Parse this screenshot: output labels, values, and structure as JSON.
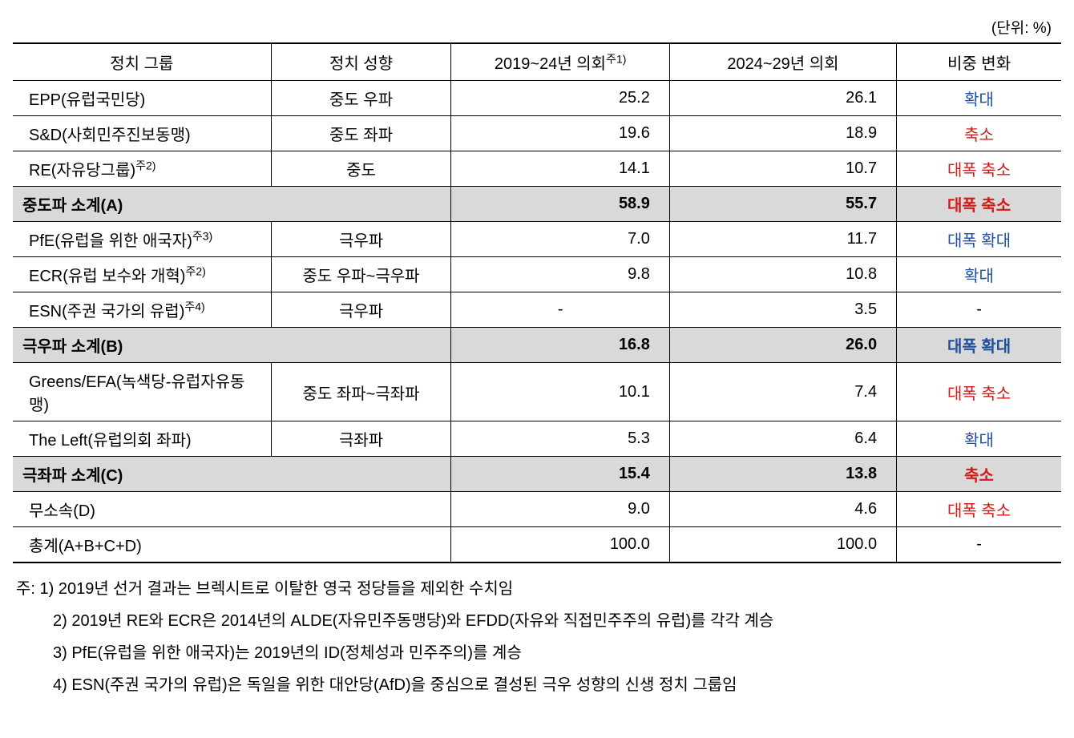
{
  "unit_label": "(단위: %)",
  "columns": {
    "group": "정치 그룹",
    "orient": "정치 성향",
    "c2019": "2019~24년 의회",
    "c2019_sup": "주1)",
    "c2024": "2024~29년 의회",
    "change": "비중 변화"
  },
  "colors": {
    "blue": "#1f4e9c",
    "red": "#d31a1a",
    "subtotal_bg": "#d9d9d9"
  },
  "rows": [
    {
      "kind": "data",
      "group": "EPP(유럽국민당)",
      "orient": "중도 우파",
      "c2019": "25.2",
      "c2024": "26.1",
      "change": "확대",
      "change_color": "blue"
    },
    {
      "kind": "data",
      "group": "S&D(사회민주진보동맹)",
      "orient": "중도 좌파",
      "c2019": "19.6",
      "c2024": "18.9",
      "change": "축소",
      "change_color": "red"
    },
    {
      "kind": "data",
      "group": "RE(자유당그룹)",
      "sup": "주2)",
      "orient": "중도",
      "c2019": "14.1",
      "c2024": "10.7",
      "change": "대폭 축소",
      "change_color": "red"
    },
    {
      "kind": "subtotal",
      "group": "중도파 소계(A)",
      "c2019": "58.9",
      "c2024": "55.7",
      "change": "대폭 축소",
      "change_color": "red"
    },
    {
      "kind": "data",
      "group": "PfE(유럽을 위한 애국자)",
      "sup": "주3)",
      "orient": "극우파",
      "c2019": "7.0",
      "c2024": "11.7",
      "change": "대폭 확대",
      "change_color": "blue"
    },
    {
      "kind": "data",
      "group": "ECR(유럽 보수와 개혁)",
      "sup": "주2)",
      "orient": "중도 우파~극우파",
      "c2019": "9.8",
      "c2024": "10.8",
      "change": "확대",
      "change_color": "blue"
    },
    {
      "kind": "data",
      "group": "ESN(주권 국가의 유럽)",
      "sup": "주4)",
      "orient": "극우파",
      "c2019": "-",
      "c2024": "3.5",
      "change": "-",
      "change_color": "none"
    },
    {
      "kind": "subtotal",
      "group": "극우파 소계(B)",
      "c2019": "16.8",
      "c2024": "26.0",
      "change": "대폭 확대",
      "change_color": "blue"
    },
    {
      "kind": "data",
      "group": "Greens/EFA(녹색당-유럽자유동맹)",
      "orient": "중도 좌파~극좌파",
      "c2019": "10.1",
      "c2024": "7.4",
      "change": "대폭 축소",
      "change_color": "red"
    },
    {
      "kind": "data",
      "group": "The Left(유럽의회 좌파)",
      "orient": "극좌파",
      "c2019": "5.3",
      "c2024": "6.4",
      "change": "확대",
      "change_color": "blue"
    },
    {
      "kind": "subtotal",
      "group": "극좌파 소계(C)",
      "c2019": "15.4",
      "c2024": "13.8",
      "change": "축소",
      "change_color": "red"
    },
    {
      "kind": "wide",
      "group": "무소속(D)",
      "c2019": "9.0",
      "c2024": "4.6",
      "change": "대폭 축소",
      "change_color": "red"
    },
    {
      "kind": "wide",
      "group": "총계(A+B+C+D)",
      "c2019": "100.0",
      "c2024": "100.0",
      "change": "-",
      "change_color": "none"
    }
  ],
  "notes": {
    "prefix": "주: ",
    "items": [
      "1) 2019년 선거 결과는 브렉시트로 이탈한 영국 정당들을 제외한 수치임",
      "2) 2019년 RE와 ECR은 2014년의 ALDE(자유민주동맹당)와 EFDD(자유와 직접민주주의 유럽)를 각각 계승",
      "3) PfE(유럽을 위한 애국자)는 2019년의 ID(정체성과 민주주의)를 계승",
      "4) ESN(주권 국가의 유럽)은 독일을 위한 대안당(AfD)을 중심으로 결성된 극우 성향의 신생 정치 그룹임"
    ]
  }
}
